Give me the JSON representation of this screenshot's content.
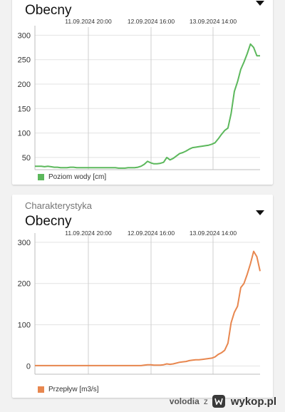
{
  "cards": [
    {
      "category": "",
      "title": "Obecny",
      "legend": "Poziom wody [cm]",
      "color": "#5cb85c",
      "chart_data": {
        "type": "line",
        "ylim": [
          25,
          305
        ],
        "yticks": [
          50,
          100,
          150,
          200,
          250,
          300
        ],
        "grid": true,
        "date_labels": [
          "11.09.2024 20:00",
          "12.09.2024 16:00",
          "13.09.2024 14:00"
        ],
        "series": [
          {
            "name": "Poziom wody [cm]",
            "values": [
              32,
              32,
              32,
              31,
              32,
              31,
              30,
              30,
              29,
              29,
              29,
              30,
              30,
              29,
              29,
              29,
              29,
              29,
              29,
              29,
              29,
              29,
              29,
              29,
              29,
              29,
              28,
              28,
              28,
              29,
              29,
              29,
              30,
              32,
              36,
              42,
              39,
              37,
              37,
              38,
              40,
              50,
              45,
              48,
              53,
              58,
              60,
              63,
              67,
              70,
              71,
              72,
              73,
              74,
              75,
              77,
              80,
              88,
              97,
              105,
              110,
              140,
              185,
              205,
              230,
              245,
              262,
              282,
              275,
              258,
              258
            ]
          }
        ]
      }
    },
    {
      "category": "Charakterystyka",
      "title": "Obecny",
      "legend": "Przepływ [m3/s]",
      "color": "#e8874f",
      "chart_data": {
        "type": "line",
        "ylim": [
          -20,
          305
        ],
        "yticks": [
          0,
          100,
          200,
          300
        ],
        "grid": true,
        "date_labels": [
          "11.09.2024 20:00",
          "12.09.2024 16:00",
          "13.09.2024 14:00"
        ],
        "series": [
          {
            "name": "Przepływ [m3/s]",
            "values": [
              1,
              1,
              1,
              1,
              1,
              1,
              1,
              1,
              1,
              1,
              1,
              1,
              1,
              1,
              1,
              1,
              1,
              1,
              1,
              1,
              1,
              1,
              1,
              1,
              1,
              1,
              1,
              1,
              1,
              1,
              1,
              1,
              1,
              1,
              2,
              3,
              3,
              2,
              2,
              2,
              3,
              5,
              4,
              5,
              7,
              9,
              10,
              11,
              13,
              14,
              15,
              15,
              16,
              17,
              18,
              19,
              22,
              28,
              32,
              38,
              55,
              105,
              130,
              145,
              190,
              200,
              222,
              248,
              278,
              265,
              230
            ]
          }
        ]
      }
    }
  ],
  "footer": {
    "user": "volodia",
    "connector": "z",
    "brand": "wykop.pl"
  }
}
